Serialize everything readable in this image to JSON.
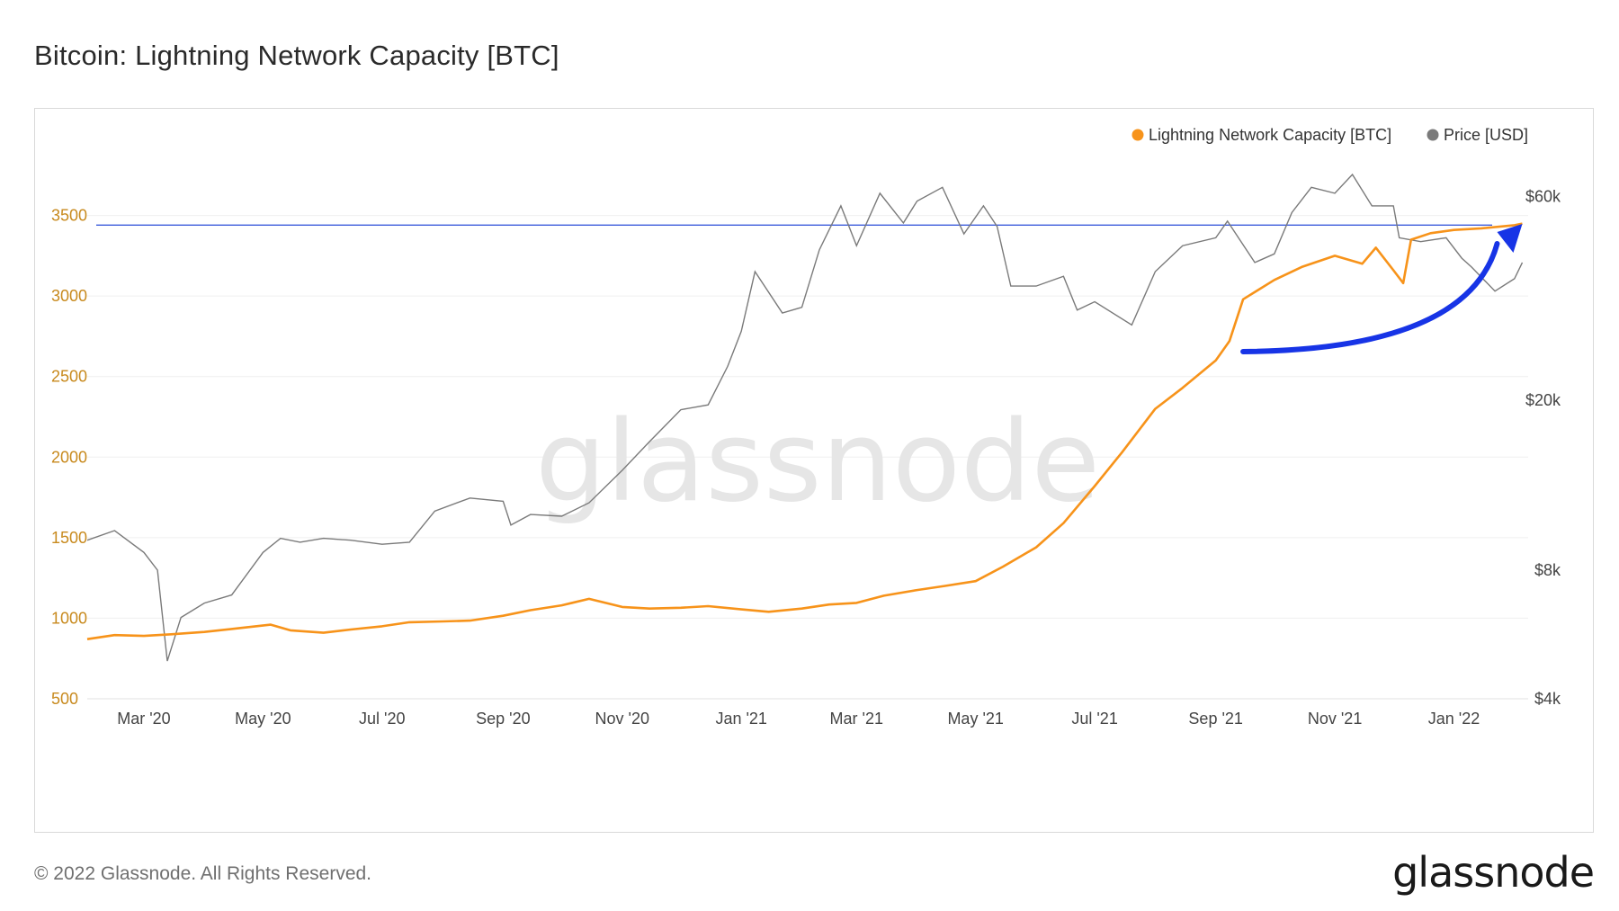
{
  "title": "Bitcoin: Lightning Network Capacity [BTC]",
  "footer": {
    "copyright": "© 2022 Glassnode. All Rights Reserved.",
    "logo": "glassnode"
  },
  "watermark": "glassnode",
  "colors": {
    "capacity": "#f7931a",
    "price": "#7a7a7a",
    "reference_line": "#3b5bdb",
    "annotation_arrow": "#1734e6",
    "left_axis_text": "#c88a1e",
    "right_axis_text": "#444444"
  },
  "chart_data": {
    "type": "line",
    "title": "Bitcoin: Lightning Network Capacity [BTC]",
    "legend_position": "top-right",
    "grid": true,
    "x_ticks": [
      "Mar '20",
      "May '20",
      "Jul '20",
      "Sep '20",
      "Nov '20",
      "Jan '21",
      "Mar '21",
      "May '21",
      "Jul '21",
      "Sep '21",
      "Nov '21",
      "Jan '22"
    ],
    "x_range": [
      "2020-02-01",
      "2022-02-08"
    ],
    "y_left": {
      "ticks": [
        500,
        1000,
        1500,
        2000,
        2500,
        3000,
        3500
      ],
      "tick_labels": [
        "500",
        "1000",
        "1500",
        "2000",
        "2500",
        "3000",
        "3500"
      ],
      "range": [
        500,
        3950
      ]
    },
    "y_right": {
      "scale": "log",
      "ticks": [
        4000,
        8000,
        20000,
        60000
      ],
      "tick_labels": [
        "$4k",
        "$8k",
        "$20k",
        "$60k"
      ],
      "range": [
        4000,
        80000
      ]
    },
    "reference_line": {
      "axis": "left",
      "y": 3440
    },
    "annotation": {
      "type": "arrow",
      "from_date": "2021-09-15",
      "to_date": "2022-02-05"
    },
    "series": [
      {
        "name": "Lightning Network Capacity [BTC]",
        "axis": "left",
        "x": [
          "2020-02-01",
          "2020-02-15",
          "2020-03-01",
          "2020-03-15",
          "2020-04-01",
          "2020-04-20",
          "2020-05-05",
          "2020-05-15",
          "2020-06-01",
          "2020-06-15",
          "2020-07-01",
          "2020-07-15",
          "2020-08-01",
          "2020-08-15",
          "2020-09-01",
          "2020-09-15",
          "2020-10-01",
          "2020-10-15",
          "2020-11-01",
          "2020-11-15",
          "2020-12-01",
          "2020-12-15",
          "2021-01-01",
          "2021-01-15",
          "2021-02-01",
          "2021-02-15",
          "2021-03-01",
          "2021-03-15",
          "2021-04-01",
          "2021-04-15",
          "2021-05-01",
          "2021-05-15",
          "2021-06-01",
          "2021-06-15",
          "2021-07-01",
          "2021-07-15",
          "2021-08-01",
          "2021-08-15",
          "2021-09-01",
          "2021-09-08",
          "2021-09-15",
          "2021-10-01",
          "2021-10-15",
          "2021-11-01",
          "2021-11-15",
          "2021-11-22",
          "2021-12-01",
          "2021-12-06",
          "2021-12-10",
          "2021-12-20",
          "2022-01-01",
          "2022-01-15",
          "2022-02-01",
          "2022-02-05"
        ],
        "values": [
          870,
          895,
          890,
          900,
          915,
          940,
          960,
          925,
          910,
          930,
          950,
          975,
          980,
          985,
          1015,
          1050,
          1080,
          1120,
          1070,
          1060,
          1065,
          1075,
          1055,
          1040,
          1060,
          1085,
          1095,
          1140,
          1175,
          1200,
          1230,
          1320,
          1440,
          1590,
          1820,
          2030,
          2300,
          2430,
          2600,
          2720,
          2980,
          3100,
          3180,
          3250,
          3200,
          3300,
          3160,
          3080,
          3350,
          3390,
          3410,
          3420,
          3440,
          3450
        ]
      },
      {
        "name": "Price [USD]",
        "axis": "right",
        "x": [
          "2020-02-01",
          "2020-02-15",
          "2020-03-01",
          "2020-03-08",
          "2020-03-13",
          "2020-03-20",
          "2020-04-01",
          "2020-04-15",
          "2020-05-01",
          "2020-05-10",
          "2020-05-20",
          "2020-06-01",
          "2020-06-15",
          "2020-07-01",
          "2020-07-15",
          "2020-07-28",
          "2020-08-15",
          "2020-09-01",
          "2020-09-05",
          "2020-09-15",
          "2020-10-01",
          "2020-10-15",
          "2020-11-01",
          "2020-11-15",
          "2020-12-01",
          "2020-12-15",
          "2020-12-25",
          "2021-01-01",
          "2021-01-08",
          "2021-01-22",
          "2021-02-01",
          "2021-02-10",
          "2021-02-21",
          "2021-03-01",
          "2021-03-13",
          "2021-03-25",
          "2021-04-01",
          "2021-04-14",
          "2021-04-25",
          "2021-05-05",
          "2021-05-12",
          "2021-05-19",
          "2021-06-01",
          "2021-06-15",
          "2021-06-22",
          "2021-07-01",
          "2021-07-20",
          "2021-08-01",
          "2021-08-15",
          "2021-09-01",
          "2021-09-07",
          "2021-09-21",
          "2021-10-01",
          "2021-10-10",
          "2021-10-20",
          "2021-11-01",
          "2021-11-10",
          "2021-11-20",
          "2021-12-01",
          "2021-12-04",
          "2021-12-15",
          "2021-12-28",
          "2022-01-05",
          "2022-01-10",
          "2022-01-22",
          "2022-02-01",
          "2022-02-05"
        ],
        "values": [
          9400,
          9900,
          8800,
          8000,
          4900,
          6200,
          6700,
          7000,
          8800,
          9500,
          9300,
          9500,
          9400,
          9200,
          9300,
          11000,
          11800,
          11600,
          10200,
          10800,
          10700,
          11500,
          13700,
          16000,
          19000,
          19500,
          24000,
          29000,
          40000,
          32000,
          33000,
          45000,
          57000,
          46000,
          61000,
          52000,
          58500,
          63000,
          49000,
          57000,
          51000,
          37000,
          37000,
          39000,
          32500,
          34000,
          30000,
          40000,
          46000,
          48000,
          52500,
          42000,
          44000,
          55000,
          63000,
          61000,
          67500,
          57000,
          57000,
          48000,
          47000,
          48000,
          43000,
          41000,
          36000,
          38500,
          42000
        ]
      }
    ]
  }
}
